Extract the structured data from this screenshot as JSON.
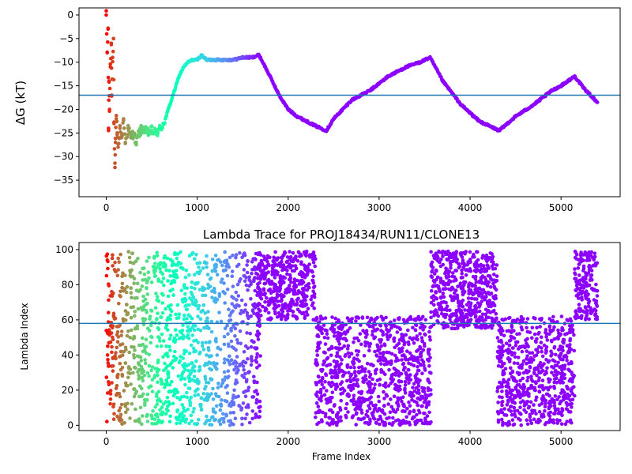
{
  "chart_data": [
    {
      "type": "scatter",
      "title": "",
      "xlabel": "",
      "ylabel": "ΔG (kT)",
      "xlim": [
        -300,
        5650
      ],
      "ylim": [
        -38.5,
        1.5
      ],
      "xticks": [
        0,
        1000,
        2000,
        3000,
        4000,
        5000
      ],
      "yticks": [
        0,
        -5,
        -10,
        -15,
        -20,
        -25,
        -30,
        -35
      ],
      "colormap": "rainbow (red at early frames → violet at late frames)",
      "hline": {
        "y": -17,
        "color": "#1f77b4"
      },
      "series": [
        {
          "points": [
            [
              0,
              0
            ],
            [
              10,
              -8
            ],
            [
              20,
              -3
            ],
            [
              25,
              -24
            ],
            [
              30,
              -14
            ],
            [
              35,
              -20
            ],
            [
              45,
              -11
            ],
            [
              55,
              -6
            ],
            [
              60,
              -17
            ],
            [
              70,
              -9
            ],
            [
              80,
              -5
            ],
            [
              85,
              -23
            ],
            [
              95,
              -32.3
            ],
            [
              100,
              -27
            ],
            [
              110,
              -22
            ],
            [
              120,
              -25
            ],
            [
              130,
              -28
            ],
            [
              150,
              -24
            ],
            [
              170,
              -26
            ],
            [
              190,
              -22
            ],
            [
              210,
              -27
            ],
            [
              240,
              -24
            ],
            [
              270,
              -26
            ],
            [
              300,
              -25
            ],
            [
              330,
              -27
            ],
            [
              360,
              -25
            ],
            [
              400,
              -24
            ],
            [
              450,
              -25
            ],
            [
              500,
              -24.5
            ],
            [
              550,
              -25
            ],
            [
              600,
              -24
            ],
            [
              650,
              -22
            ],
            [
              700,
              -19
            ],
            [
              750,
              -16
            ],
            [
              800,
              -13
            ],
            [
              850,
              -11
            ],
            [
              900,
              -10
            ],
            [
              950,
              -9.5
            ],
            [
              1000,
              -9.5
            ],
            [
              1050,
              -8.5
            ],
            [
              1100,
              -9.5
            ],
            [
              1200,
              -9.5
            ],
            [
              1300,
              -9.5
            ],
            [
              1400,
              -9.5
            ],
            [
              1500,
              -9
            ],
            [
              1600,
              -9
            ],
            [
              1680,
              -8.5
            ],
            [
              1800,
              -13
            ],
            [
              1900,
              -17
            ],
            [
              2000,
              -20
            ],
            [
              2100,
              -21.5
            ],
            [
              2200,
              -22.5
            ],
            [
              2300,
              -23.5
            ],
            [
              2420,
              -24.5
            ],
            [
              2500,
              -22
            ],
            [
              2700,
              -18
            ],
            [
              2900,
              -16
            ],
            [
              3100,
              -13
            ],
            [
              3300,
              -11
            ],
            [
              3450,
              -10
            ],
            [
              3560,
              -9
            ],
            [
              3700,
              -14
            ],
            [
              3900,
              -19
            ],
            [
              4100,
              -22.5
            ],
            [
              4320,
              -24.5
            ],
            [
              4500,
              -21.5
            ],
            [
              4700,
              -19
            ],
            [
              4900,
              -16
            ],
            [
              5000,
              -15
            ],
            [
              5150,
              -13
            ],
            [
              5250,
              -15.5
            ],
            [
              5350,
              -17.5
            ],
            [
              5400,
              -18.5
            ]
          ]
        }
      ]
    },
    {
      "type": "scatter",
      "title": "Lambda Trace for PROJ18434/RUN11/CLONE13",
      "xlabel": "Frame Index",
      "ylabel": "Lambda Index",
      "xlim": [
        -300,
        5650
      ],
      "ylim": [
        -3,
        104
      ],
      "xticks": [
        0,
        1000,
        2000,
        3000,
        4000,
        5000
      ],
      "yticks": [
        0,
        20,
        40,
        60,
        80,
        100
      ],
      "colormap": "rainbow (red at early frames → violet at late frames)",
      "hline": {
        "y": 58,
        "color": "#1f77b4"
      },
      "segments": [
        {
          "x_start": 0,
          "x_end": 600,
          "y_min": 0,
          "y_max": 99,
          "points": 420
        },
        {
          "x_start": 600,
          "x_end": 1700,
          "y_min": 0,
          "y_max": 99,
          "points": 800
        },
        {
          "x_start": 1650,
          "x_end": 2300,
          "y_min": 60,
          "y_max": 99,
          "points": 420
        },
        {
          "x_start": 2300,
          "x_end": 3570,
          "y_min": 0,
          "y_max": 62,
          "points": 900
        },
        {
          "x_start": 3570,
          "x_end": 4300,
          "y_min": 55,
          "y_max": 99,
          "points": 550
        },
        {
          "x_start": 4300,
          "x_end": 5150,
          "y_min": 0,
          "y_max": 62,
          "points": 650
        },
        {
          "x_start": 5150,
          "x_end": 5400,
          "y_min": 60,
          "y_max": 99,
          "points": 180
        }
      ]
    }
  ]
}
